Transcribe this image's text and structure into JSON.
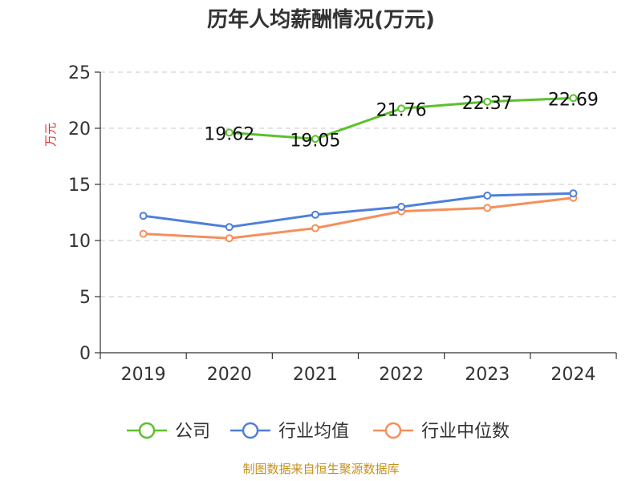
{
  "chart_data": {
    "type": "line",
    "title": "历年人均薪酬情况(万元)",
    "ylabel": "万元",
    "xlabel": "",
    "categories": [
      "2019",
      "2020",
      "2021",
      "2022",
      "2023",
      "2024"
    ],
    "ylim": [
      0,
      25
    ],
    "yticks": [
      0,
      5,
      10,
      15,
      20,
      25
    ],
    "grid": true,
    "legend_position": "bottom",
    "series": [
      {
        "name": "公司",
        "color": "#5cc12b",
        "values": [
          null,
          19.62,
          19.05,
          21.76,
          22.37,
          22.69
        ],
        "labels": [
          "",
          "19.62",
          "19.05",
          "21.76",
          "22.37",
          "22.69"
        ]
      },
      {
        "name": "行业均值",
        "color": "#4f7fdb",
        "values": [
          12.2,
          11.2,
          12.3,
          13.0,
          14.0,
          14.2
        ],
        "labels": []
      },
      {
        "name": "行业中位数",
        "color": "#f58f5c",
        "values": [
          10.6,
          10.2,
          11.1,
          12.6,
          12.9,
          13.8
        ],
        "labels": []
      }
    ],
    "source": "制图数据来自恒生聚源数据库"
  }
}
